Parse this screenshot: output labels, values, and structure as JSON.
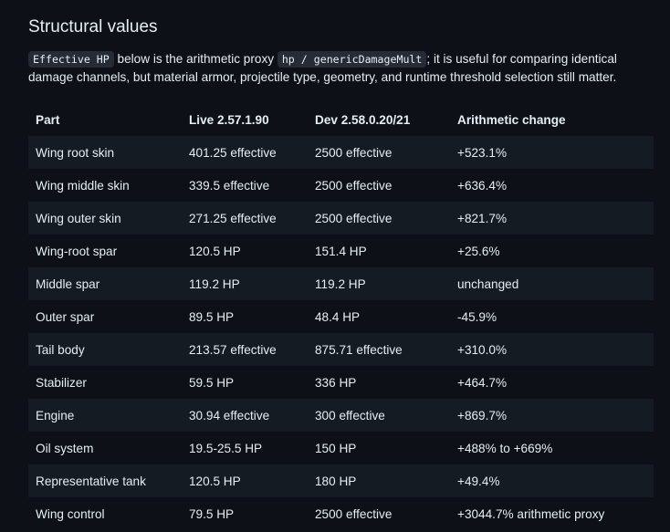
{
  "section": {
    "heading": "Structural values",
    "intro": {
      "code1": "Effective HP",
      "text1": " below is the arithmetic proxy ",
      "code2": "hp / genericDamageMult",
      "text2": "; it is useful for comparing identical",
      "line2": "damage channels, but material armor, projectile type, geometry, and runtime threshold selection still matter."
    }
  },
  "table": {
    "headers": [
      "Part",
      "Live 2.57.1.90",
      "Dev 2.58.0.20/21",
      "Arithmetic change"
    ],
    "rows": [
      [
        "Wing root skin",
        "401.25 effective",
        "2500 effective",
        "+523.1%"
      ],
      [
        "Wing middle skin",
        "339.5 effective",
        "2500 effective",
        "+636.4%"
      ],
      [
        "Wing outer skin",
        "271.25 effective",
        "2500 effective",
        "+821.7%"
      ],
      [
        "Wing-root spar",
        "120.5 HP",
        "151.4 HP",
        "+25.6%"
      ],
      [
        "Middle spar",
        "119.2 HP",
        "119.2 HP",
        "unchanged"
      ],
      [
        "Outer spar",
        "89.5 HP",
        "48.4 HP",
        "-45.9%"
      ],
      [
        "Tail body",
        "213.57 effective",
        "875.71 effective",
        "+310.0%"
      ],
      [
        "Stabilizer",
        "59.5 HP",
        "336 HP",
        "+464.7%"
      ],
      [
        "Engine",
        "30.94 effective",
        "300 effective",
        "+869.7%"
      ],
      [
        "Oil system",
        "19.5-25.5 HP",
        "150 HP",
        "+488% to +669%"
      ],
      [
        "Representative tank",
        "120.5 HP",
        "180 HP",
        "+49.4%"
      ],
      [
        "Wing control",
        "79.5 HP",
        "2500 effective",
        "+3044.7% arithmetic proxy"
      ]
    ]
  }
}
